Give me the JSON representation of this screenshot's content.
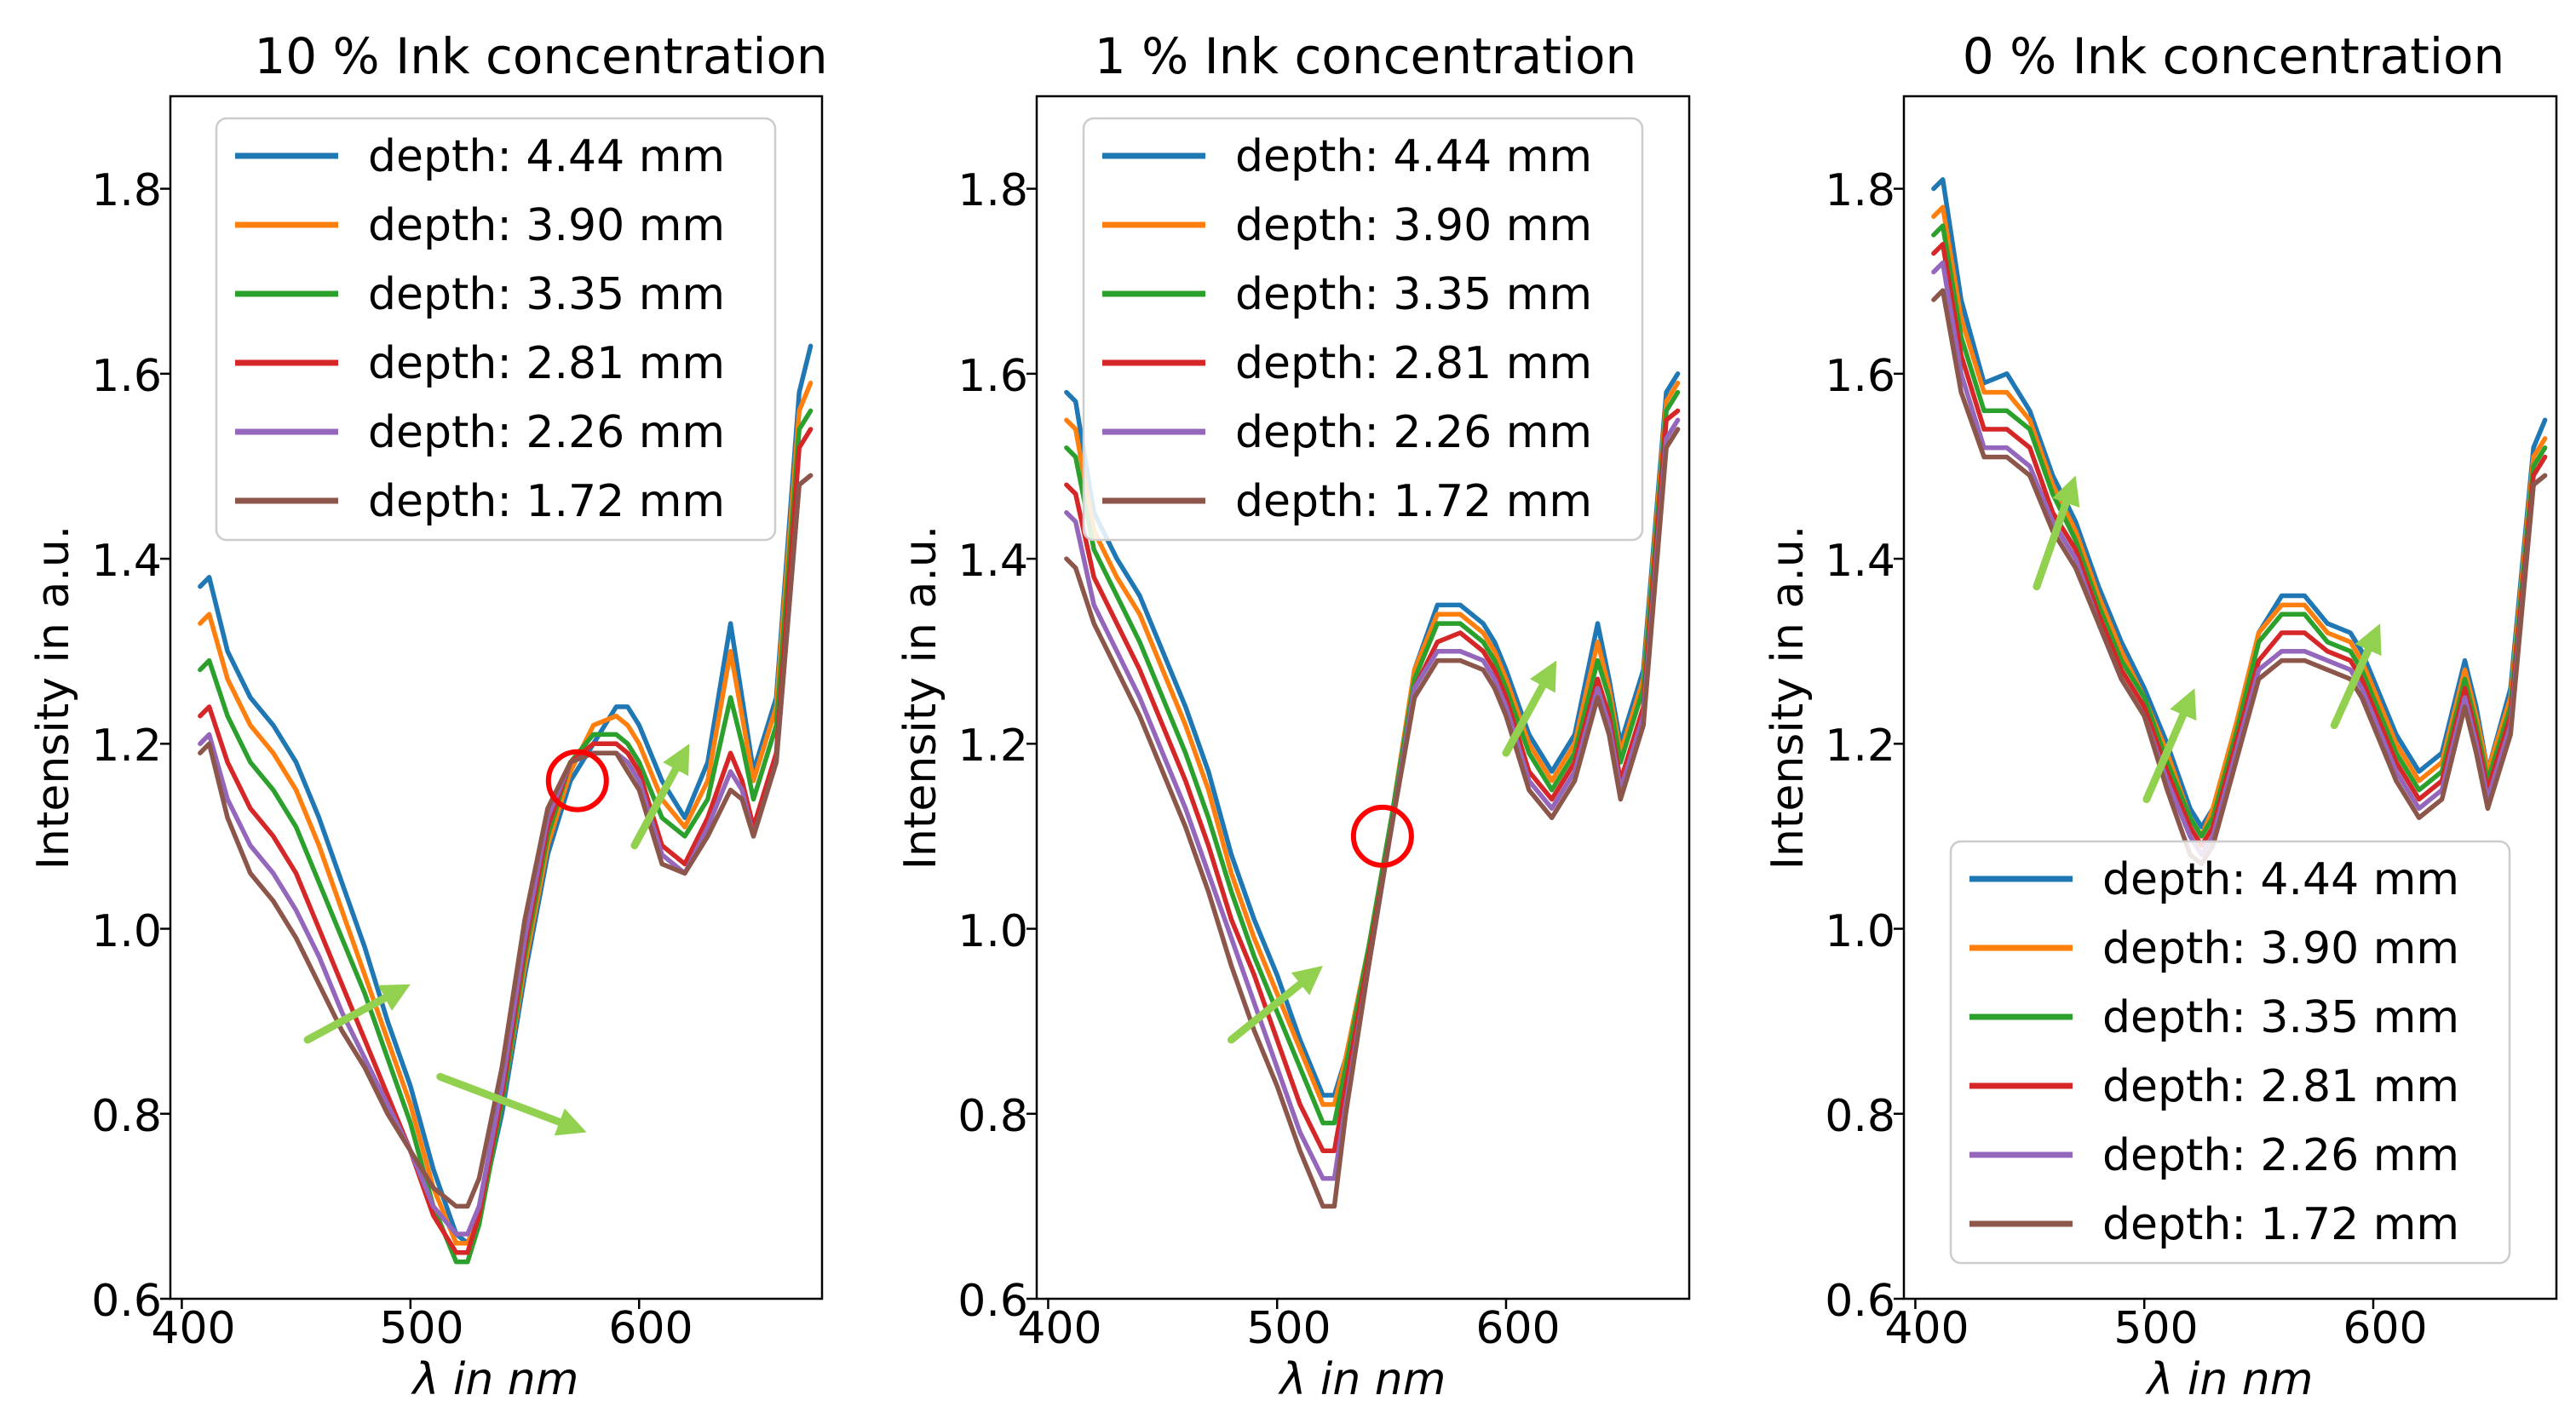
{
  "colors": {
    "series": [
      "#1f77b4",
      "#ff7f0e",
      "#2ca02c",
      "#d62728",
      "#9467bd",
      "#8c564b"
    ],
    "arrow": "#92d050",
    "circle": "#ff0000"
  },
  "chart_data": [
    {
      "type": "line",
      "title": "10 % Ink concentration",
      "xlabel": "λ in nm",
      "ylabel": "Intensity in a.u.",
      "xlim": [
        395,
        680
      ],
      "ylim": [
        0.6,
        1.9
      ],
      "xticks": [
        400,
        500,
        600
      ],
      "yticks": [
        0.6,
        0.8,
        1.0,
        1.2,
        1.4,
        1.6,
        1.8
      ],
      "xtick_labels": [
        "400",
        "500",
        "600"
      ],
      "ytick_labels": [
        "0.6",
        "0.8",
        "1.0",
        "1.2",
        "1.4",
        "1.6",
        "1.8"
      ],
      "legend_position": "upper-right",
      "x": [
        408,
        412,
        420,
        430,
        440,
        450,
        460,
        470,
        480,
        490,
        500,
        510,
        520,
        525,
        530,
        540,
        550,
        560,
        570,
        580,
        590,
        595,
        600,
        610,
        620,
        630,
        640,
        645,
        650,
        660,
        670,
        675
      ],
      "series": [
        {
          "name": "depth: 4.44 mm",
          "values": [
            1.37,
            1.38,
            1.3,
            1.25,
            1.22,
            1.18,
            1.12,
            1.05,
            0.98,
            0.9,
            0.83,
            0.74,
            0.67,
            0.66,
            0.69,
            0.8,
            0.95,
            1.08,
            1.16,
            1.2,
            1.24,
            1.24,
            1.22,
            1.16,
            1.12,
            1.18,
            1.33,
            1.25,
            1.17,
            1.25,
            1.58,
            1.63
          ]
        },
        {
          "name": "depth: 3.90 mm",
          "values": [
            1.33,
            1.34,
            1.27,
            1.22,
            1.19,
            1.15,
            1.09,
            1.02,
            0.95,
            0.88,
            0.81,
            0.72,
            0.66,
            0.66,
            0.69,
            0.81,
            0.96,
            1.09,
            1.17,
            1.22,
            1.23,
            1.22,
            1.2,
            1.14,
            1.11,
            1.16,
            1.3,
            1.23,
            1.16,
            1.24,
            1.56,
            1.59
          ]
        },
        {
          "name": "depth: 3.35 mm",
          "values": [
            1.28,
            1.29,
            1.23,
            1.18,
            1.15,
            1.11,
            1.05,
            0.99,
            0.93,
            0.86,
            0.79,
            0.7,
            0.64,
            0.64,
            0.68,
            0.81,
            0.97,
            1.1,
            1.18,
            1.21,
            1.21,
            1.2,
            1.18,
            1.12,
            1.1,
            1.14,
            1.25,
            1.2,
            1.14,
            1.22,
            1.54,
            1.56
          ]
        },
        {
          "name": "depth: 2.81 mm",
          "values": [
            1.23,
            1.24,
            1.18,
            1.13,
            1.1,
            1.06,
            1.0,
            0.94,
            0.88,
            0.82,
            0.76,
            0.69,
            0.65,
            0.65,
            0.69,
            0.82,
            0.98,
            1.11,
            1.18,
            1.2,
            1.2,
            1.19,
            1.17,
            1.09,
            1.07,
            1.12,
            1.19,
            1.16,
            1.11,
            1.19,
            1.52,
            1.54
          ]
        },
        {
          "name": "depth: 2.26 mm",
          "values": [
            1.2,
            1.21,
            1.14,
            1.09,
            1.06,
            1.02,
            0.97,
            0.91,
            0.86,
            0.81,
            0.76,
            0.7,
            0.67,
            0.67,
            0.7,
            0.83,
            0.99,
            1.12,
            1.18,
            1.19,
            1.19,
            1.18,
            1.16,
            1.08,
            1.06,
            1.11,
            1.17,
            1.15,
            1.1,
            1.18,
            1.48,
            1.49
          ]
        },
        {
          "name": "depth: 1.72 mm",
          "values": [
            1.19,
            1.2,
            1.12,
            1.06,
            1.03,
            0.99,
            0.94,
            0.89,
            0.85,
            0.8,
            0.76,
            0.72,
            0.7,
            0.7,
            0.73,
            0.85,
            1.01,
            1.13,
            1.18,
            1.19,
            1.19,
            1.17,
            1.15,
            1.07,
            1.06,
            1.1,
            1.15,
            1.14,
            1.1,
            1.18,
            1.48,
            1.49
          ]
        }
      ],
      "annotations": {
        "circles": [
          {
            "x": 573,
            "y": 1.16
          }
        ],
        "arrows": [
          {
            "from": [
              455,
              0.88
            ],
            "to": [
              500,
              0.94
            ]
          },
          {
            "from": [
              513,
              0.84
            ],
            "to": [
              577,
              0.78
            ]
          },
          {
            "from": [
              598,
              1.09
            ],
            "to": [
              622,
              1.2
            ]
          }
        ]
      }
    },
    {
      "type": "line",
      "title": "1 % Ink concentration",
      "xlabel": "λ in nm",
      "ylabel": "Intensity in a.u.",
      "xlim": [
        395,
        680
      ],
      "ylim": [
        0.6,
        1.9
      ],
      "xticks": [
        400,
        500,
        600
      ],
      "yticks": [
        0.6,
        0.8,
        1.0,
        1.2,
        1.4,
        1.6,
        1.8
      ],
      "xtick_labels": [
        "400",
        "500",
        "600"
      ],
      "ytick_labels": [
        "0.6",
        "0.8",
        "1.0",
        "1.2",
        "1.4",
        "1.6",
        "1.8"
      ],
      "legend_position": "upper-right",
      "x": [
        408,
        412,
        420,
        430,
        440,
        450,
        460,
        470,
        480,
        490,
        500,
        510,
        520,
        525,
        530,
        540,
        550,
        560,
        570,
        580,
        590,
        595,
        600,
        610,
        620,
        630,
        640,
        645,
        650,
        660,
        670,
        675
      ],
      "series": [
        {
          "name": "depth: 4.44 mm",
          "values": [
            1.58,
            1.57,
            1.45,
            1.4,
            1.36,
            1.3,
            1.24,
            1.17,
            1.08,
            1.01,
            0.95,
            0.88,
            0.82,
            0.82,
            0.86,
            0.98,
            1.12,
            1.28,
            1.35,
            1.35,
            1.33,
            1.31,
            1.28,
            1.21,
            1.17,
            1.21,
            1.33,
            1.27,
            1.2,
            1.28,
            1.58,
            1.6
          ]
        },
        {
          "name": "depth: 3.90 mm",
          "values": [
            1.55,
            1.54,
            1.43,
            1.38,
            1.34,
            1.28,
            1.22,
            1.15,
            1.06,
            0.99,
            0.93,
            0.87,
            0.81,
            0.81,
            0.86,
            0.98,
            1.12,
            1.28,
            1.34,
            1.34,
            1.32,
            1.3,
            1.27,
            1.2,
            1.16,
            1.2,
            1.31,
            1.26,
            1.19,
            1.27,
            1.57,
            1.59
          ]
        },
        {
          "name": "depth: 3.35 mm",
          "values": [
            1.52,
            1.51,
            1.41,
            1.36,
            1.31,
            1.25,
            1.19,
            1.12,
            1.04,
            0.97,
            0.91,
            0.85,
            0.79,
            0.79,
            0.85,
            0.98,
            1.12,
            1.27,
            1.33,
            1.33,
            1.31,
            1.29,
            1.26,
            1.19,
            1.15,
            1.19,
            1.29,
            1.25,
            1.18,
            1.26,
            1.56,
            1.58
          ]
        },
        {
          "name": "depth: 2.81 mm",
          "values": [
            1.48,
            1.47,
            1.38,
            1.33,
            1.28,
            1.22,
            1.16,
            1.09,
            1.01,
            0.95,
            0.88,
            0.81,
            0.76,
            0.76,
            0.83,
            0.97,
            1.11,
            1.26,
            1.31,
            1.32,
            1.3,
            1.28,
            1.25,
            1.17,
            1.14,
            1.18,
            1.27,
            1.23,
            1.16,
            1.24,
            1.55,
            1.56
          ]
        },
        {
          "name": "depth: 2.26 mm",
          "values": [
            1.45,
            1.44,
            1.35,
            1.3,
            1.25,
            1.19,
            1.13,
            1.06,
            0.99,
            0.92,
            0.85,
            0.78,
            0.73,
            0.73,
            0.81,
            0.96,
            1.11,
            1.26,
            1.3,
            1.3,
            1.29,
            1.27,
            1.24,
            1.16,
            1.13,
            1.17,
            1.26,
            1.22,
            1.15,
            1.23,
            1.53,
            1.55
          ]
        },
        {
          "name": "depth: 1.72 mm",
          "values": [
            1.4,
            1.39,
            1.33,
            1.28,
            1.23,
            1.17,
            1.11,
            1.04,
            0.96,
            0.89,
            0.83,
            0.76,
            0.7,
            0.7,
            0.8,
            0.96,
            1.11,
            1.25,
            1.29,
            1.29,
            1.28,
            1.26,
            1.23,
            1.15,
            1.12,
            1.16,
            1.25,
            1.21,
            1.14,
            1.22,
            1.52,
            1.54
          ]
        }
      ],
      "annotations": {
        "circles": [
          {
            "x": 546,
            "y": 1.1
          }
        ],
        "arrows": [
          {
            "from": [
              480,
              0.88
            ],
            "to": [
              520,
              0.96
            ]
          },
          {
            "from": [
              600,
              1.19
            ],
            "to": [
              622,
              1.29
            ]
          }
        ]
      }
    },
    {
      "type": "line",
      "title": "0 % Ink concentration",
      "xlabel": "λ in nm",
      "ylabel": "Intensity in a.u.",
      "xlim": [
        395,
        680
      ],
      "ylim": [
        0.6,
        1.9
      ],
      "xticks": [
        400,
        500,
        600
      ],
      "yticks": [
        0.6,
        0.8,
        1.0,
        1.2,
        1.4,
        1.6,
        1.8
      ],
      "xtick_labels": [
        "400",
        "500",
        "600"
      ],
      "ytick_labels": [
        "0.6",
        "0.8",
        "1.0",
        "1.2",
        "1.4",
        "1.6",
        "1.8"
      ],
      "legend_position": "lower-right",
      "x": [
        408,
        412,
        420,
        430,
        440,
        450,
        460,
        470,
        480,
        490,
        500,
        510,
        520,
        525,
        530,
        540,
        550,
        560,
        570,
        580,
        590,
        595,
        600,
        610,
        620,
        630,
        640,
        645,
        650,
        660,
        670,
        675
      ],
      "series": [
        {
          "name": "depth: 4.44 mm",
          "values": [
            1.8,
            1.81,
            1.68,
            1.59,
            1.6,
            1.56,
            1.49,
            1.44,
            1.37,
            1.31,
            1.26,
            1.2,
            1.13,
            1.11,
            1.13,
            1.22,
            1.32,
            1.36,
            1.36,
            1.33,
            1.32,
            1.3,
            1.27,
            1.21,
            1.17,
            1.19,
            1.29,
            1.24,
            1.17,
            1.26,
            1.52,
            1.55
          ]
        },
        {
          "name": "depth: 3.90 mm",
          "values": [
            1.77,
            1.78,
            1.66,
            1.58,
            1.58,
            1.55,
            1.48,
            1.43,
            1.36,
            1.3,
            1.25,
            1.19,
            1.12,
            1.1,
            1.13,
            1.22,
            1.32,
            1.35,
            1.35,
            1.32,
            1.31,
            1.29,
            1.26,
            1.2,
            1.16,
            1.18,
            1.28,
            1.23,
            1.17,
            1.25,
            1.51,
            1.53
          ]
        },
        {
          "name": "depth: 3.35 mm",
          "values": [
            1.75,
            1.76,
            1.64,
            1.56,
            1.56,
            1.54,
            1.47,
            1.42,
            1.35,
            1.29,
            1.25,
            1.18,
            1.12,
            1.1,
            1.12,
            1.21,
            1.31,
            1.34,
            1.34,
            1.31,
            1.3,
            1.28,
            1.25,
            1.19,
            1.15,
            1.17,
            1.27,
            1.22,
            1.16,
            1.24,
            1.5,
            1.52
          ]
        },
        {
          "name": "depth: 2.81 mm",
          "values": [
            1.73,
            1.74,
            1.62,
            1.54,
            1.54,
            1.52,
            1.45,
            1.41,
            1.34,
            1.28,
            1.24,
            1.17,
            1.11,
            1.09,
            1.11,
            1.2,
            1.29,
            1.32,
            1.32,
            1.3,
            1.29,
            1.27,
            1.24,
            1.18,
            1.14,
            1.16,
            1.26,
            1.21,
            1.15,
            1.23,
            1.49,
            1.51
          ]
        },
        {
          "name": "depth: 2.26 mm",
          "values": [
            1.71,
            1.72,
            1.6,
            1.52,
            1.52,
            1.5,
            1.44,
            1.4,
            1.33,
            1.27,
            1.23,
            1.16,
            1.1,
            1.08,
            1.1,
            1.19,
            1.28,
            1.3,
            1.3,
            1.29,
            1.28,
            1.26,
            1.23,
            1.17,
            1.13,
            1.15,
            1.25,
            1.2,
            1.14,
            1.22,
            1.48,
            1.49
          ]
        },
        {
          "name": "depth: 1.72 mm",
          "values": [
            1.68,
            1.69,
            1.58,
            1.51,
            1.51,
            1.49,
            1.43,
            1.39,
            1.33,
            1.27,
            1.23,
            1.15,
            1.08,
            1.07,
            1.09,
            1.18,
            1.27,
            1.29,
            1.29,
            1.28,
            1.27,
            1.25,
            1.22,
            1.16,
            1.12,
            1.14,
            1.24,
            1.19,
            1.13,
            1.21,
            1.48,
            1.49
          ]
        }
      ],
      "annotations": {
        "circles": [],
        "arrows": [
          {
            "from": [
              453,
              1.37
            ],
            "to": [
              470,
              1.49
            ]
          },
          {
            "from": [
              501,
              1.14
            ],
            "to": [
              522,
              1.26
            ]
          },
          {
            "from": [
              583,
              1.22
            ],
            "to": [
              603,
              1.33
            ]
          }
        ]
      }
    }
  ]
}
